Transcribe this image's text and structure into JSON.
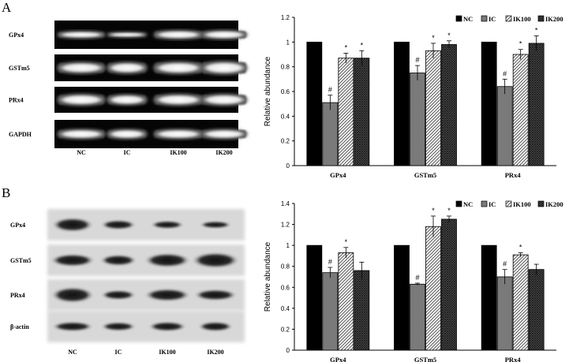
{
  "panels": {
    "a_label": "A",
    "b_label": "B"
  },
  "gel_a": {
    "row_labels": [
      "GPx4",
      "GSTm5",
      "PRx4",
      "GAPDH"
    ],
    "lane_labels": [
      "NC",
      "IC",
      "IK100",
      "IK200"
    ]
  },
  "blot_b": {
    "row_labels": [
      "GPx4",
      "GSTm5",
      "PRx4",
      "β-actin"
    ],
    "lane_labels": [
      "NC",
      "IC",
      "IK100",
      "IK200"
    ]
  },
  "colors": {
    "nc": "#000000",
    "ic": "#7a7a7a",
    "ik100_hatch": "#555555",
    "ik200_cross": "#3a3a3a",
    "gel_background": "#050505",
    "gel_band": "#ffffff"
  },
  "chart_data": [
    {
      "type": "bar",
      "panel": "A",
      "categories": [
        "GPx4",
        "GSTm5",
        "PRx4"
      ],
      "series": [
        {
          "name": "NC",
          "values": [
            1.0,
            1.0,
            1.0
          ],
          "errors": [
            0.0,
            0.0,
            0.0
          ],
          "marks": [
            "",
            "",
            ""
          ]
        },
        {
          "name": "IC",
          "values": [
            0.51,
            0.75,
            0.64
          ],
          "errors": [
            0.06,
            0.06,
            0.06
          ],
          "marks": [
            "#",
            "#",
            "#"
          ]
        },
        {
          "name": "IK100",
          "values": [
            0.87,
            0.93,
            0.9
          ],
          "errors": [
            0.04,
            0.06,
            0.04
          ],
          "marks": [
            "*",
            "*",
            "*"
          ]
        },
        {
          "name": "IK200",
          "values": [
            0.87,
            0.98,
            0.99
          ],
          "errors": [
            0.06,
            0.03,
            0.06
          ],
          "marks": [
            "*",
            "*",
            "*"
          ]
        }
      ],
      "ylabel": "Relative abundance",
      "ylim": [
        0,
        1.2
      ],
      "yticks": [
        "0",
        "0.2",
        "0.4",
        "0.6",
        "0.8",
        "1",
        "1.2"
      ],
      "legend": "top-right"
    },
    {
      "type": "bar",
      "panel": "B",
      "categories": [
        "GPx4",
        "GSTm5",
        "PRx4"
      ],
      "series": [
        {
          "name": "NC",
          "values": [
            1.0,
            1.0,
            1.0
          ],
          "errors": [
            0.0,
            0.0,
            0.0
          ],
          "marks": [
            "",
            "",
            ""
          ]
        },
        {
          "name": "IC",
          "values": [
            0.74,
            0.63,
            0.7
          ],
          "errors": [
            0.05,
            0.01,
            0.07
          ],
          "marks": [
            "#",
            "#",
            "#"
          ]
        },
        {
          "name": "IK100",
          "values": [
            0.93,
            1.18,
            0.91
          ],
          "errors": [
            0.05,
            0.1,
            0.02
          ],
          "marks": [
            "*",
            "*",
            "*"
          ]
        },
        {
          "name": "IK200",
          "values": [
            0.76,
            1.25,
            0.77
          ],
          "errors": [
            0.08,
            0.03,
            0.05
          ],
          "marks": [
            "",
            "*",
            ""
          ]
        }
      ],
      "ylabel": "Relative abundance",
      "ylim": [
        0,
        1.4
      ],
      "yticks": [
        "0",
        "0.2",
        "0.4",
        "0.6",
        "0.8",
        "1",
        "1.2",
        "1.4"
      ],
      "legend": "top-right"
    }
  ]
}
